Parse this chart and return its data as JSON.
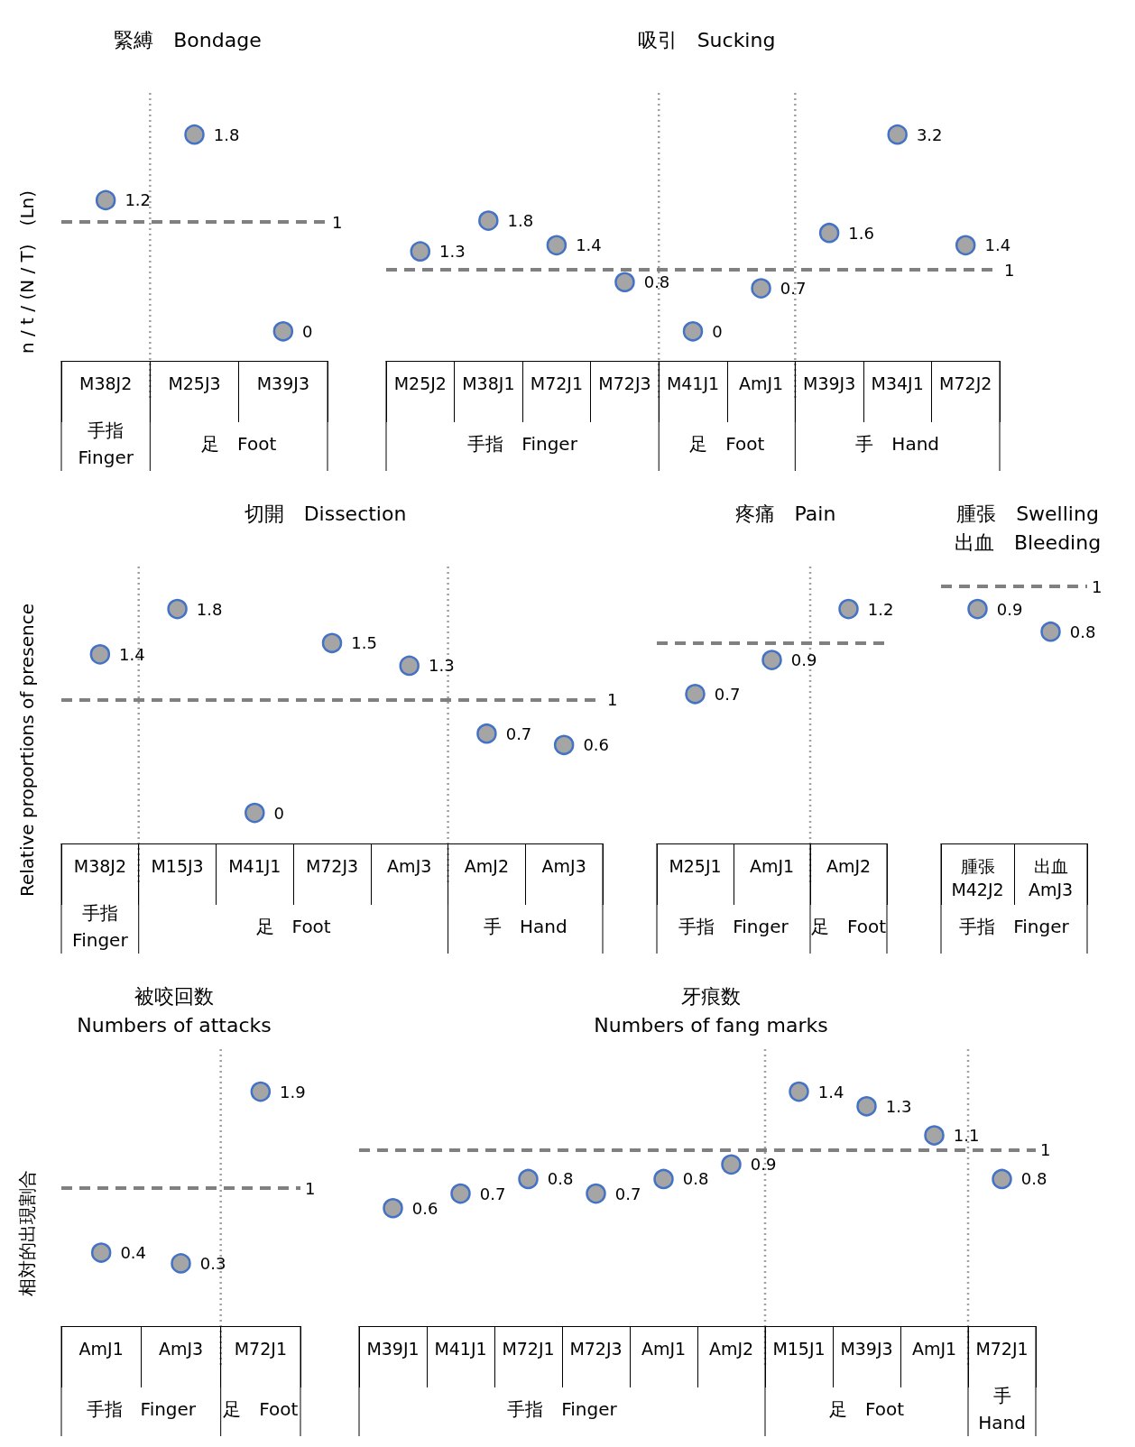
{
  "chart_data": [
    {
      "type": "scatter",
      "title": "緊縛　Bondage",
      "ylabel": "n / t / (N / T)　(Ln)",
      "categories": [
        "M38J2",
        "M25J3",
        "M39J3"
      ],
      "values": [
        1.2,
        1.8,
        0
      ],
      "color": "#a5a5a5",
      "marker": "circle",
      "data_labels": true,
      "ref_lines": [
        {
          "axis": "y",
          "value": 1,
          "label": "1",
          "color": "#808080",
          "line_style": "dashed"
        }
      ],
      "annotations": [
        "手指\nFinger",
        "足　Foot"
      ]
    },
    {
      "type": "scatter",
      "title": "吸引　Sucking",
      "categories": [
        "M25J2",
        "M38J1",
        "M72J1",
        "M72J3",
        "M41J1",
        "AmJ1",
        "M39J3",
        "M34J1",
        "M72J2"
      ],
      "values": [
        1.3,
        1.8,
        1.4,
        0.8,
        0,
        0.7,
        1.6,
        3.2,
        1.4
      ],
      "color": "#a5a5a5",
      "marker": "circle",
      "data_labels": true,
      "ref_lines": [
        {
          "axis": "y",
          "value": 1,
          "label": "1",
          "color": "#808080",
          "line_style": "dashed"
        }
      ],
      "annotations": [
        "手指　Finger",
        "足　Foot",
        "手　Hand"
      ]
    },
    {
      "type": "scatter",
      "title": "切開　Dissection",
      "ylabel": "Relative proportions of presence",
      "categories": [
        "M38J2",
        "M15J3",
        "M41J1",
        "M72J3",
        "AmJ3",
        "AmJ2",
        "AmJ3"
      ],
      "values": [
        1.4,
        1.8,
        0,
        1.5,
        1.3,
        0.7,
        0.6
      ],
      "color": "#a5a5a5",
      "marker": "circle",
      "data_labels": true,
      "ref_lines": [
        {
          "axis": "y",
          "value": 1,
          "label": "1",
          "color": "#808080",
          "line_style": "dashed"
        }
      ],
      "annotations": [
        "手指\nFinger",
        "足　Foot",
        "手　Hand"
      ]
    },
    {
      "type": "scatter",
      "title": "疼痛　Pain",
      "categories": [
        "M25J1",
        "AmJ1",
        "AmJ2"
      ],
      "values": [
        0.7,
        0.9,
        1.2
      ],
      "color": "#a5a5a5",
      "marker": "circle",
      "data_labels": true,
      "ref_lines": [
        {
          "axis": "y",
          "value": 1,
          "color": "#808080",
          "line_style": "dashed"
        }
      ],
      "annotations": [
        "手指　Finger",
        "足　Foot"
      ]
    },
    {
      "type": "scatter",
      "title": "腫張　Swelling\n出血　Bleeding",
      "categories": [
        "腫張\nM42J2",
        "出血\nAmJ3"
      ],
      "values": [
        0.9,
        0.8
      ],
      "color": "#a5a5a5",
      "marker": "circle",
      "data_labels": true,
      "ref_lines": [
        {
          "axis": "y",
          "value": 1,
          "label": "1",
          "color": "#808080",
          "line_style": "dashed"
        }
      ],
      "annotations": [
        "手指　Finger"
      ]
    },
    {
      "type": "scatter",
      "title": "被咬回数\nNumbers of attacks",
      "ylabel": "相対的出現割合",
      "categories": [
        "AmJ1",
        "AmJ3",
        "M72J1"
      ],
      "values": [
        0.4,
        0.3,
        1.9
      ],
      "color": "#a5a5a5",
      "marker": "circle",
      "data_labels": true,
      "ref_lines": [
        {
          "axis": "y",
          "value": 1,
          "label": "1",
          "color": "#808080",
          "line_style": "dashed"
        }
      ],
      "annotations": [
        "手指　Finger",
        "足　Foot"
      ]
    },
    {
      "type": "scatter",
      "title": "牙痕数\nNumbers of fang marks",
      "categories": [
        "M39J1",
        "M41J1",
        "M72J1",
        "M72J3",
        "AmJ1",
        "AmJ2",
        "M15J1",
        "M39J3",
        "AmJ1",
        "M72J1"
      ],
      "values": [
        0.6,
        0.7,
        0.8,
        0.7,
        0.8,
        0.9,
        1.4,
        1.3,
        1.1,
        0.8
      ],
      "color": "#a5a5a5",
      "marker": "circle",
      "data_labels": true,
      "ref_lines": [
        {
          "axis": "y",
          "value": 1,
          "label": "1",
          "color": "#808080",
          "line_style": "dashed"
        }
      ],
      "annotations": [
        "手指　Finger",
        "足　Foot",
        "手\nHand"
      ]
    }
  ]
}
